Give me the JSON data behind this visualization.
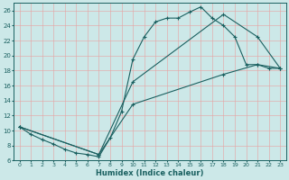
{
  "xlabel": "Humidex (Indice chaleur)",
  "bg_color": "#cce8e8",
  "grid_color": "#e8a0a0",
  "line_color": "#1a6060",
  "xlim": [
    -0.5,
    23.5
  ],
  "ylim": [
    6,
    27
  ],
  "xticks": [
    0,
    1,
    2,
    3,
    4,
    5,
    6,
    7,
    8,
    9,
    10,
    11,
    12,
    13,
    14,
    15,
    16,
    17,
    18,
    19,
    20,
    21,
    22,
    23
  ],
  "yticks": [
    6,
    8,
    10,
    12,
    14,
    16,
    18,
    20,
    22,
    24,
    26
  ],
  "line1_x": [
    0,
    1,
    2,
    3,
    4,
    5,
    6,
    7,
    8,
    9,
    10,
    11,
    12,
    13,
    14,
    15,
    16,
    17,
    18,
    19,
    20,
    21,
    22,
    23
  ],
  "line1_y": [
    10.5,
    9.5,
    8.8,
    8.2,
    7.5,
    7.0,
    6.8,
    6.5,
    9.0,
    12.5,
    19.5,
    22.5,
    24.5,
    25.0,
    25.0,
    25.8,
    26.5,
    25.0,
    24.0,
    22.5,
    18.8,
    18.8,
    18.3,
    18.3
  ],
  "line2_x": [
    0,
    7,
    10,
    18,
    21,
    23
  ],
  "line2_y": [
    10.5,
    6.8,
    16.5,
    25.5,
    22.5,
    18.3
  ],
  "line3_x": [
    0,
    7,
    10,
    18,
    21,
    23
  ],
  "line3_y": [
    10.5,
    6.8,
    13.5,
    17.5,
    18.8,
    18.3
  ]
}
